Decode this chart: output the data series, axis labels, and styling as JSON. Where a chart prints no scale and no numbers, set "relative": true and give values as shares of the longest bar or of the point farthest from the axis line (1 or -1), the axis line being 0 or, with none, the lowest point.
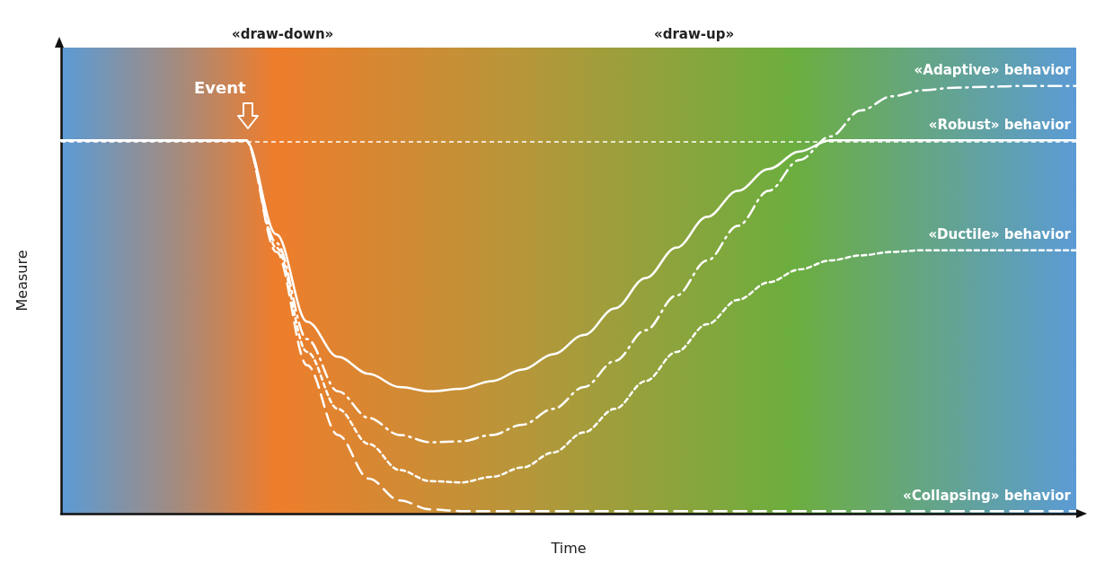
{
  "chart_data": {
    "type": "line",
    "relative": true,
    "xlabel": "Time",
    "ylabel": "Measure",
    "annotations": [
      "«draw-down»",
      "«draw-up»",
      "Event"
    ],
    "categories": [
      null,
      null,
      null,
      null,
      null,
      null,
      null,
      null,
      null,
      null,
      null,
      null,
      null,
      null,
      null,
      null,
      null,
      null,
      null,
      null,
      null,
      null,
      null,
      null,
      null,
      null,
      null,
      null,
      null,
      null,
      null,
      null,
      null,
      null
    ],
    "series": [
      {
        "name": "«Adaptive» behavior",
        "color": "#ffffff",
        "line_style": "dashdot",
        "values": [
          0.873,
          0.873,
          0.873,
          0.873,
          0.873,
          0.873,
          0.873,
          0.633,
          0.408,
          0.286,
          0.224,
          0.184,
          0.167,
          0.169,
          0.184,
          0.208,
          0.245,
          0.296,
          0.357,
          0.429,
          0.51,
          0.592,
          0.673,
          0.755,
          0.827,
          0.882,
          0.943,
          0.976,
          0.99,
          0.996,
          0.998,
          1,
          1,
          1
        ]
      },
      {
        "name": "«Robust» behavior",
        "color": "#ffffff",
        "line_style": "solid",
        "values": [
          0.873,
          0.873,
          0.873,
          0.873,
          0.873,
          0.873,
          0.873,
          0.653,
          0.449,
          0.367,
          0.327,
          0.296,
          0.286,
          0.292,
          0.31,
          0.337,
          0.373,
          0.418,
          0.48,
          0.551,
          0.622,
          0.694,
          0.755,
          0.806,
          0.847,
          0.873,
          0.873,
          0.873,
          0.873,
          0.873,
          0.873,
          0.873,
          0.873,
          0.873
        ]
      },
      {
        "name": "«Ductile» behavior",
        "color": "#ffffff",
        "line_style": "dotted",
        "values": [
          0.873,
          0.873,
          0.873,
          0.873,
          0.873,
          0.873,
          0.873,
          0.622,
          0.378,
          0.245,
          0.163,
          0.102,
          0.076,
          0.073,
          0.086,
          0.108,
          0.143,
          0.19,
          0.245,
          0.31,
          0.378,
          0.443,
          0.5,
          0.541,
          0.571,
          0.592,
          0.604,
          0.612,
          0.616,
          0.616,
          0.616,
          0.616,
          0.616,
          0.616
        ]
      },
      {
        "name": "«Collapsing» behavior",
        "color": "#ffffff",
        "line_style": "dashed",
        "values": [
          0.873,
          0.873,
          0.873,
          0.873,
          0.873,
          0.873,
          0.873,
          0.612,
          0.347,
          0.184,
          0.082,
          0.031,
          0.01,
          0.006,
          0.006,
          0.006,
          0.006,
          0.006,
          0.006,
          0.006,
          0.006,
          0.006,
          0.006,
          0.006,
          0.006,
          0.006,
          0.006,
          0.006,
          0.006,
          0.006,
          0.006,
          0.006,
          0.006,
          0.006
        ]
      }
    ],
    "ref_lines": [
      {
        "axis": "y",
        "value": 0.873,
        "color": "#ffffff",
        "line_style": "dotted"
      }
    ],
    "legend": false,
    "grid": false,
    "marker": "none"
  }
}
